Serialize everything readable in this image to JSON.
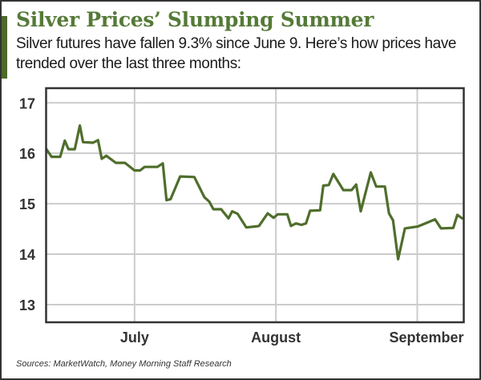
{
  "title": "Silver Prices’ Slumping Summer",
  "subtitle": "Silver futures have fallen 9.3% since June 9. Here’s how prices have trended over the last three months:",
  "source": "Sources: MarketWatch, Money Morning Staff Research",
  "colors": {
    "accent": "#4c6a2c",
    "title": "#557a37",
    "line": "#4f6e2c",
    "grid": "#cccccc"
  },
  "chart_data": {
    "type": "line",
    "title": "Silver Prices’ Slumping Summer",
    "xlabel": "",
    "ylabel": "",
    "x_unit": "days since June 1",
    "xlim": [
      10.6,
      102.2
    ],
    "ylim": [
      12.65,
      17.29
    ],
    "grid": true,
    "y_ticks": [
      13,
      14,
      15,
      16,
      17
    ],
    "x_ticks": [
      {
        "label": "July",
        "value": 30
      },
      {
        "label": "August",
        "value": 61
      },
      {
        "label": "September",
        "value": 92
      }
    ],
    "series": [
      {
        "name": "Silver futures",
        "x": [
          10.6,
          11.8,
          13.7,
          14.7,
          15.5,
          16.9,
          18.0,
          18.7,
          20.9,
          22.0,
          22.8,
          23.8,
          25.9,
          27.9,
          30.0,
          31.2,
          32.2,
          35.0,
          36.2,
          37.0,
          37.9,
          40.0,
          43.1,
          45.3,
          46.4,
          47.3,
          49.0,
          50.6,
          51.4,
          52.6,
          54.5,
          56.7,
          57.3,
          59.2,
          60.5,
          61.4,
          63.5,
          64.3,
          65.4,
          66.6,
          67.6,
          68.5,
          70.7,
          71.4,
          72.6,
          73.6,
          75.8,
          77.6,
          78.6,
          79.6,
          81.8,
          83.0,
          84.9,
          85.8,
          86.7,
          87.8,
          89.3,
          92.2,
          95.9,
          97.2,
          99.9,
          100.8,
          102.0
        ],
        "y": [
          16.09,
          15.93,
          15.93,
          16.25,
          16.08,
          16.08,
          16.55,
          16.22,
          16.21,
          16.26,
          15.89,
          15.95,
          15.81,
          15.81,
          15.66,
          15.66,
          15.73,
          15.73,
          15.8,
          15.07,
          15.09,
          15.54,
          15.53,
          15.13,
          15.04,
          14.89,
          14.89,
          14.71,
          14.85,
          14.8,
          14.53,
          14.55,
          14.56,
          14.81,
          14.72,
          14.79,
          14.79,
          14.56,
          14.61,
          14.58,
          14.61,
          14.86,
          14.87,
          15.36,
          15.37,
          15.59,
          15.27,
          15.27,
          15.38,
          14.85,
          15.62,
          15.34,
          15.34,
          14.81,
          14.67,
          13.9,
          14.51,
          14.55,
          14.69,
          14.51,
          14.52,
          14.78,
          14.7
        ]
      }
    ]
  }
}
